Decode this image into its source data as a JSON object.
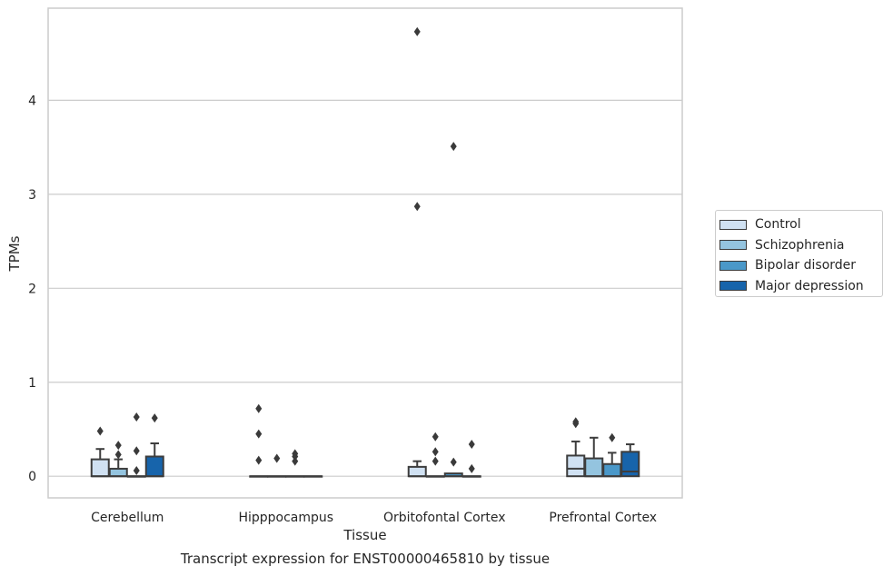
{
  "chart_data": {
    "type": "box",
    "caption": "Transcript expression for ENST00000465810 by tissue",
    "xlabel": "Tissue",
    "ylabel": "TPMs",
    "ylim": [
      -0.23,
      4.98
    ],
    "yticks": [
      0,
      1,
      2,
      3,
      4
    ],
    "grid": true,
    "legend_position": "right",
    "categories": [
      "Cerebellum",
      "Hipppocampus",
      "Orbitofontal Cortex",
      "Prefrontal Cortex"
    ],
    "series": [
      {
        "name": "Control",
        "color": "#d0e1f2",
        "boxes": [
          {
            "q1": 0.0,
            "median": 0.0,
            "q3": 0.18,
            "whislo": 0.0,
            "whishi": 0.29,
            "fliers": [
              0.48
            ]
          },
          {
            "q1": 0.0,
            "median": 0.0,
            "q3": 0.0,
            "whislo": 0.0,
            "whishi": 0.0,
            "fliers": [
              0.17,
              0.45,
              0.72
            ]
          },
          {
            "q1": 0.0,
            "median": 0.0,
            "q3": 0.1,
            "whislo": 0.0,
            "whishi": 0.16,
            "fliers": [
              2.87,
              4.73
            ]
          },
          {
            "q1": 0.0,
            "median": 0.08,
            "q3": 0.22,
            "whislo": 0.0,
            "whishi": 0.37,
            "fliers": [
              0.56,
              0.58
            ]
          }
        ]
      },
      {
        "name": "Schizophrenia",
        "color": "#94c4df",
        "boxes": [
          {
            "q1": 0.0,
            "median": 0.0,
            "q3": 0.08,
            "whislo": 0.0,
            "whishi": 0.18,
            "fliers": [
              0.23,
              0.33
            ]
          },
          {
            "q1": 0.0,
            "median": 0.0,
            "q3": 0.0,
            "whislo": 0.0,
            "whishi": 0.0,
            "fliers": [
              0.19
            ]
          },
          {
            "q1": 0.0,
            "median": 0.0,
            "q3": 0.0,
            "whislo": 0.0,
            "whishi": 0.0,
            "fliers": [
              0.16,
              0.26,
              0.42
            ]
          },
          {
            "q1": 0.0,
            "median": 0.0,
            "q3": 0.19,
            "whislo": 0.0,
            "whishi": 0.41,
            "fliers": []
          }
        ]
      },
      {
        "name": "Bipolar disorder",
        "color": "#4a98c9",
        "boxes": [
          {
            "q1": 0.0,
            "median": 0.0,
            "q3": 0.0,
            "whislo": 0.0,
            "whishi": 0.0,
            "fliers": [
              0.06,
              0.27,
              0.63
            ]
          },
          {
            "q1": 0.0,
            "median": 0.0,
            "q3": 0.0,
            "whislo": 0.0,
            "whishi": 0.0,
            "fliers": [
              0.16,
              0.21,
              0.24
            ]
          },
          {
            "q1": 0.0,
            "median": 0.0,
            "q3": 0.03,
            "whislo": 0.0,
            "whishi": 0.03,
            "fliers": [
              0.15,
              3.51
            ]
          },
          {
            "q1": 0.0,
            "median": 0.0,
            "q3": 0.13,
            "whislo": 0.0,
            "whishi": 0.25,
            "fliers": [
              0.41
            ]
          }
        ]
      },
      {
        "name": "Major depression",
        "color": "#1764ab",
        "boxes": [
          {
            "q1": 0.0,
            "median": 0.0,
            "q3": 0.21,
            "whislo": 0.0,
            "whishi": 0.35,
            "fliers": [
              0.62
            ]
          },
          {
            "q1": 0.0,
            "median": 0.0,
            "q3": 0.0,
            "whislo": 0.0,
            "whishi": 0.0,
            "fliers": []
          },
          {
            "q1": 0.0,
            "median": 0.0,
            "q3": 0.0,
            "whislo": 0.0,
            "whishi": 0.0,
            "fliers": [
              0.08,
              0.34
            ]
          },
          {
            "q1": 0.0,
            "median": 0.05,
            "q3": 0.26,
            "whislo": 0.0,
            "whishi": 0.34,
            "fliers": []
          }
        ]
      }
    ]
  }
}
